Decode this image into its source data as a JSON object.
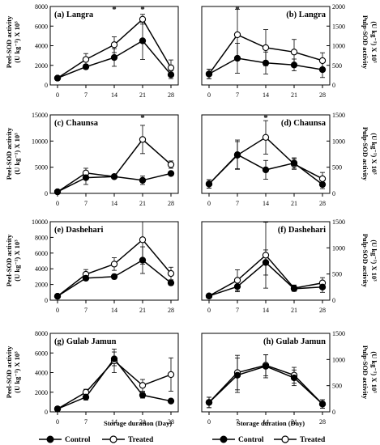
{
  "figure": {
    "xlabel": "Storage duration (Day)",
    "peel_ylabel_line1": "Peel-SOD activity",
    "peel_ylabel_line2": "(U kg⁻¹) X 10³",
    "pulp_ylabel_line1": "Pulp-SOD activity",
    "pulp_ylabel_line2": "(U kg⁻¹) X 10³",
    "x_ticks": [
      "0",
      "7",
      "14",
      "21",
      "28"
    ],
    "legend": {
      "control": "Control",
      "treated": "Treated"
    }
  },
  "chart_data": [
    {
      "type": "line",
      "label": "(a) Langra",
      "side": "peel",
      "x": [
        0,
        7,
        14,
        21,
        28
      ],
      "ylim": [
        0,
        8000
      ],
      "y_ticks": [
        "0",
        "2000",
        "4000",
        "6000",
        "8000"
      ],
      "series": [
        {
          "name": "Control",
          "values": [
            700,
            1850,
            2800,
            4500,
            1050
          ],
          "errors": [
            100,
            250,
            900,
            1900,
            400
          ]
        },
        {
          "name": "Treated",
          "values": [
            700,
            2600,
            4100,
            6700,
            1750
          ],
          "errors": [
            100,
            600,
            800,
            500,
            800
          ]
        }
      ],
      "significance": [
        14,
        21
      ]
    },
    {
      "type": "line",
      "label": "(b) Langra",
      "side": "pulp",
      "x": [
        0,
        7,
        14,
        21,
        28
      ],
      "ylim": [
        0,
        2000
      ],
      "y_ticks": [
        "0",
        "500",
        "1000",
        "1500",
        "2000"
      ],
      "series": [
        {
          "name": "Control",
          "values": [
            280,
            680,
            560,
            510,
            390
          ],
          "errors": [
            120,
            380,
            280,
            150,
            200
          ]
        },
        {
          "name": "Treated",
          "values": [
            280,
            1280,
            950,
            840,
            620
          ],
          "errors": [
            120,
            650,
            460,
            320,
            200
          ]
        }
      ],
      "significance": [
        7
      ]
    },
    {
      "type": "line",
      "label": "(c) Chaunsa",
      "side": "peel",
      "x": [
        0,
        7,
        14,
        21,
        28
      ],
      "ylim": [
        0,
        15000
      ],
      "y_ticks": [
        "0",
        "5000",
        "10000",
        "15000"
      ],
      "series": [
        {
          "name": "Control",
          "values": [
            300,
            3000,
            3200,
            2500,
            3800
          ],
          "errors": [
            100,
            1300,
            300,
            800,
            400
          ]
        },
        {
          "name": "Treated",
          "values": [
            300,
            3900,
            3200,
            10300,
            5500
          ],
          "errors": [
            100,
            900,
            300,
            2700,
            700
          ]
        }
      ],
      "significance": [
        21
      ]
    },
    {
      "type": "line",
      "label": "(d) Chaunsa",
      "side": "pulp",
      "x": [
        0,
        7,
        14,
        21,
        28
      ],
      "ylim": [
        0,
        1500
      ],
      "y_ticks": [
        "0",
        "500",
        "1000",
        "1500"
      ],
      "series": [
        {
          "name": "Control",
          "values": [
            180,
            740,
            450,
            580,
            170
          ],
          "errors": [
            80,
            280,
            180,
            100,
            80
          ]
        },
        {
          "name": "Treated",
          "values": [
            180,
            730,
            1070,
            560,
            280
          ],
          "errors": [
            80,
            260,
            320,
            100,
            120
          ]
        }
      ],
      "significance": [
        14
      ]
    },
    {
      "type": "line",
      "label": "(e) Dashehari",
      "side": "peel",
      "x": [
        0,
        7,
        14,
        21,
        28
      ],
      "ylim": [
        0,
        10000
      ],
      "y_ticks": [
        "0",
        "2000",
        "4000",
        "6000",
        "8000",
        "10000"
      ],
      "series": [
        {
          "name": "Control",
          "values": [
            500,
            2800,
            3000,
            5100,
            2200
          ],
          "errors": [
            100,
            300,
            300,
            1700,
            300
          ]
        },
        {
          "name": "Treated",
          "values": [
            500,
            3300,
            4600,
            7700,
            3400
          ],
          "errors": [
            100,
            600,
            800,
            3100,
            800
          ]
        }
      ],
      "significance": []
    },
    {
      "type": "line",
      "label": "(f) Dashehari",
      "side": "pulp",
      "x": [
        0,
        7,
        14,
        21,
        28
      ],
      "ylim": [
        0,
        1500
      ],
      "y_ticks": [
        "0",
        "500",
        "1000",
        "1500"
      ],
      "series": [
        {
          "name": "Control",
          "values": [
            80,
            260,
            720,
            220,
            250
          ],
          "errors": [
            20,
            100,
            240,
            50,
            100
          ]
        },
        {
          "name": "Treated",
          "values": [
            80,
            380,
            860,
            230,
            330
          ],
          "errors": [
            20,
            200,
            630,
            60,
            100
          ]
        }
      ],
      "significance": []
    },
    {
      "type": "line",
      "label": "(g) Gulab Jamun",
      "side": "peel",
      "x": [
        0,
        7,
        14,
        21,
        28
      ],
      "ylim": [
        0,
        8000
      ],
      "y_ticks": [
        "0",
        "2000",
        "4000",
        "6000",
        "8000"
      ],
      "series": [
        {
          "name": "Control",
          "values": [
            300,
            1500,
            5400,
            1700,
            1100
          ],
          "errors": [
            100,
            300,
            700,
            300,
            200
          ]
        },
        {
          "name": "Treated",
          "values": [
            300,
            2000,
            5200,
            2700,
            3800
          ],
          "errors": [
            100,
            300,
            1200,
            600,
            1700
          ]
        }
      ],
      "significance": []
    },
    {
      "type": "line",
      "label": "(h) Gulab Jamun",
      "side": "pulp",
      "x": [
        0,
        7,
        14,
        21,
        28
      ],
      "ylim": [
        0,
        1500
      ],
      "y_ticks": [
        "0",
        "500",
        "1000",
        "1500"
      ],
      "series": [
        {
          "name": "Control",
          "values": [
            180,
            700,
            870,
            650,
            150
          ],
          "errors": [
            100,
            330,
            220,
            150,
            80
          ]
        },
        {
          "name": "Treated",
          "values": [
            180,
            750,
            890,
            700,
            150
          ],
          "errors": [
            100,
            330,
            200,
            150,
            80
          ]
        }
      ],
      "significance": []
    }
  ]
}
